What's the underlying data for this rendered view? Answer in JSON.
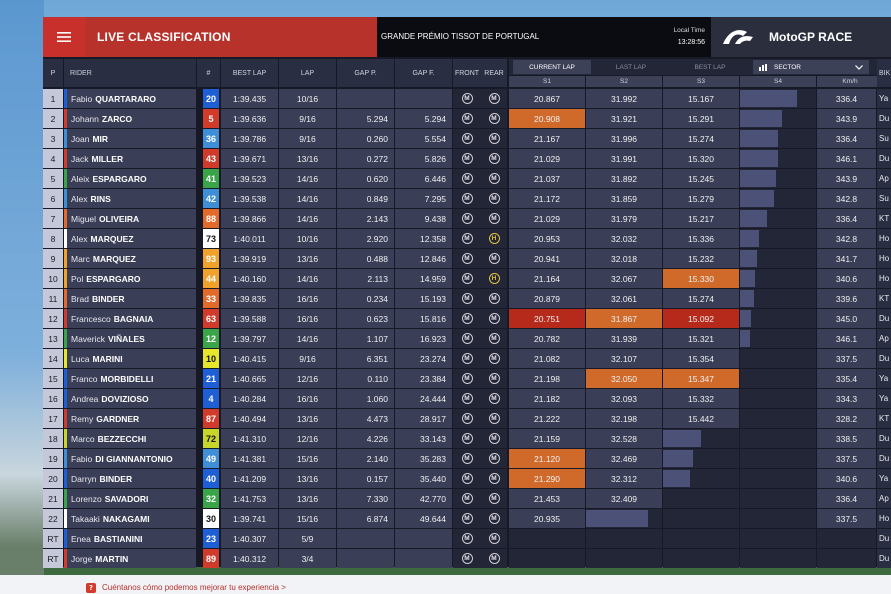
{
  "header": {
    "title": "LIVE CLASSIFICATION",
    "grand_prix": "GRANDE PRÉMIO TISSOT DE PORTUGAL",
    "local_time_label": "Local Time",
    "local_time": "13:28:56",
    "brand": "MotoGP RACE"
  },
  "columns": {
    "pos": "P",
    "rider": "RIDER",
    "num": "#",
    "best_lap": "BEST LAP",
    "lap": "LAP",
    "gap_p": "GAP P.",
    "gap_f": "GAP F.",
    "front": "FRONT",
    "rear": "REAR",
    "bike": "BIK",
    "s1": "S1",
    "s2": "S2",
    "s3": "S3",
    "s4": "S4",
    "speed": "Km/h"
  },
  "lap_modes": [
    "CURRENT LAP",
    "LAST LAP",
    "BEST LAP"
  ],
  "sector_select": "SECTOR",
  "colors": {
    "red": "#b8322c",
    "orange": "#cf6a2a",
    "deepred": "#b62a1c"
  },
  "riders": [
    {
      "pos": "1",
      "first": "Fabio",
      "last": "QUARTARARO",
      "num": "20",
      "num_bg": "#1f5fd6",
      "stripe": "#1f5fd6",
      "best": "1:39.435",
      "lap": "10/16",
      "gap_p": "",
      "gap_f": "",
      "front": "M",
      "rear": "M",
      "s1": "20.867",
      "s2": "31.992",
      "s3": "15.167",
      "s4": 0.75,
      "speed": "336.4",
      "bike": "Ya",
      "hl": []
    },
    {
      "pos": "2",
      "first": "Johann",
      "last": "ZARCO",
      "num": "5",
      "num_bg": "#d13b2b",
      "stripe": "#d13b2b",
      "best": "1:39.636",
      "lap": "9/16",
      "gap_p": "5.294",
      "gap_f": "5.294",
      "front": "M",
      "rear": "M",
      "s1": "20.908",
      "s2": "31.921",
      "s3": "15.291",
      "s4": 0.55,
      "speed": "343.9",
      "bike": "Du",
      "hl": [
        "s1o"
      ]
    },
    {
      "pos": "3",
      "first": "Joan",
      "last": "MIR",
      "num": "36",
      "num_bg": "#3e8fd6",
      "stripe": "#3e8fd6",
      "best": "1:39.786",
      "lap": "9/16",
      "gap_p": "0.260",
      "gap_f": "5.554",
      "front": "M",
      "rear": "M",
      "s1": "21.167",
      "s2": "31.996",
      "s3": "15.274",
      "s4": 0.5,
      "speed": "336.4",
      "bike": "Su",
      "hl": []
    },
    {
      "pos": "4",
      "first": "Jack",
      "last": "MILLER",
      "num": "43",
      "num_bg": "#d13b2b",
      "stripe": "#d13b2b",
      "best": "1:39.671",
      "lap": "13/16",
      "gap_p": "0.272",
      "gap_f": "5.826",
      "front": "M",
      "rear": "M",
      "s1": "21.029",
      "s2": "31.991",
      "s3": "15.320",
      "s4": 0.5,
      "speed": "346.1",
      "bike": "Du",
      "hl": []
    },
    {
      "pos": "5",
      "first": "Aleix",
      "last": "ESPARGARO",
      "num": "41",
      "num_bg": "#3aa548",
      "stripe": "#3aa548",
      "best": "1:39.523",
      "lap": "14/16",
      "gap_p": "0.620",
      "gap_f": "6.446",
      "front": "M",
      "rear": "M",
      "s1": "21.037",
      "s2": "31.892",
      "s3": "15.245",
      "s4": 0.47,
      "speed": "343.9",
      "bike": "Ap",
      "hl": []
    },
    {
      "pos": "6",
      "first": "Alex",
      "last": "RINS",
      "num": "42",
      "num_bg": "#3e8fd6",
      "stripe": "#3e8fd6",
      "best": "1:39.538",
      "lap": "14/16",
      "gap_p": "0.849",
      "gap_f": "7.295",
      "front": "M",
      "rear": "M",
      "s1": "21.172",
      "s2": "31.859",
      "s3": "15.279",
      "s4": 0.45,
      "speed": "342.8",
      "bike": "Su",
      "hl": []
    },
    {
      "pos": "7",
      "first": "Miguel",
      "last": "OLIVEIRA",
      "num": "88",
      "num_bg": "#e26b2c",
      "stripe": "#e26b2c",
      "best": "1:39.866",
      "lap": "14/16",
      "gap_p": "2.143",
      "gap_f": "9.438",
      "front": "M",
      "rear": "M",
      "s1": "21.029",
      "s2": "31.979",
      "s3": "15.217",
      "s4": 0.35,
      "speed": "336.4",
      "bike": "KT",
      "hl": []
    },
    {
      "pos": "8",
      "first": "Alex",
      "last": "MARQUEZ",
      "num": "73",
      "num_bg": "#ffffff",
      "stripe": "#ffffff",
      "best": "1:40.011",
      "lap": "10/16",
      "gap_p": "2.920",
      "gap_f": "12.358",
      "front": "M",
      "rear": "H",
      "s1": "20.953",
      "s2": "32.032",
      "s3": "15.336",
      "s4": 0.25,
      "speed": "342.8",
      "bike": "Ho",
      "hl": []
    },
    {
      "pos": "9",
      "first": "Marc",
      "last": "MARQUEZ",
      "num": "93",
      "num_bg": "#f0a22a",
      "stripe": "#f0a22a",
      "best": "1:39.919",
      "lap": "13/16",
      "gap_p": "0.488",
      "gap_f": "12.846",
      "front": "M",
      "rear": "M",
      "s1": "20.941",
      "s2": "32.018",
      "s3": "15.232",
      "s4": 0.22,
      "speed": "341.7",
      "bike": "Ho",
      "hl": []
    },
    {
      "pos": "10",
      "first": "Pol",
      "last": "ESPARGARO",
      "num": "44",
      "num_bg": "#f0a22a",
      "stripe": "#f0a22a",
      "best": "1:40.160",
      "lap": "14/16",
      "gap_p": "2.113",
      "gap_f": "14.959",
      "front": "M",
      "rear": "H",
      "s1": "21.164",
      "s2": "32.067",
      "s3": "15.330",
      "s4": 0.2,
      "speed": "340.6",
      "bike": "Ho",
      "hl": [
        "s3o"
      ]
    },
    {
      "pos": "11",
      "first": "Brad",
      "last": "BINDER",
      "num": "33",
      "num_bg": "#e26b2c",
      "stripe": "#e26b2c",
      "best": "1:39.835",
      "lap": "16/16",
      "gap_p": "0.234",
      "gap_f": "15.193",
      "front": "M",
      "rear": "M",
      "s1": "20.879",
      "s2": "32.061",
      "s3": "15.274",
      "s4": 0.18,
      "speed": "339.6",
      "bike": "KT",
      "hl": []
    },
    {
      "pos": "12",
      "first": "Francesco",
      "last": "BAGNAIA",
      "num": "63",
      "num_bg": "#d13b2b",
      "stripe": "#d13b2b",
      "best": "1:39.588",
      "lap": "16/16",
      "gap_p": "0.623",
      "gap_f": "15.816",
      "front": "M",
      "rear": "M",
      "s1": "20.751",
      "s2": "31.867",
      "s3": "15.092",
      "s4": 0.15,
      "speed": "345.0",
      "bike": "Du",
      "hl": [
        "s1r",
        "s2o",
        "s3r"
      ]
    },
    {
      "pos": "13",
      "first": "Maverick",
      "last": "VIÑALES",
      "num": "12",
      "num_bg": "#3aa548",
      "stripe": "#3aa548",
      "best": "1:39.797",
      "lap": "14/16",
      "gap_p": "1.107",
      "gap_f": "16.923",
      "front": "M",
      "rear": "M",
      "s1": "20.782",
      "s2": "31.939",
      "s3": "15.321",
      "s4": 0.13,
      "speed": "346.1",
      "bike": "Ap",
      "hl": []
    },
    {
      "pos": "14",
      "first": "Luca",
      "last": "MARINI",
      "num": "10",
      "num_bg": "#e6e62a",
      "stripe": "#e6e62a",
      "best": "1:40.415",
      "lap": "9/16",
      "gap_p": "6.351",
      "gap_f": "23.274",
      "front": "M",
      "rear": "M",
      "s1": "21.082",
      "s2": "32.107",
      "s3": "15.354",
      "s4": 0.0,
      "speed": "337.5",
      "bike": "Du",
      "hl": []
    },
    {
      "pos": "15",
      "first": "Franco",
      "last": "MORBIDELLI",
      "num": "21",
      "num_bg": "#1f5fd6",
      "stripe": "#1f5fd6",
      "best": "1:40.665",
      "lap": "12/16",
      "gap_p": "0.110",
      "gap_f": "23.384",
      "front": "M",
      "rear": "M",
      "s1": "21.198",
      "s2": "32.050",
      "s3": "15.347",
      "s4": 0.0,
      "speed": "335.4",
      "bike": "Ya",
      "hl": [
        "s2o",
        "s3o"
      ]
    },
    {
      "pos": "16",
      "first": "Andrea",
      "last": "DOVIZIOSO",
      "num": "4",
      "num_bg": "#1f5fd6",
      "stripe": "#1f5fd6",
      "best": "1:40.284",
      "lap": "16/16",
      "gap_p": "1.060",
      "gap_f": "24.444",
      "front": "M",
      "rear": "M",
      "s1": "21.182",
      "s2": "32.093",
      "s3": "15.332",
      "s4": 0.0,
      "speed": "334.3",
      "bike": "Ya",
      "hl": []
    },
    {
      "pos": "17",
      "first": "Remy",
      "last": "GARDNER",
      "num": "87",
      "num_bg": "#d13b2b",
      "stripe": "#d13b2b",
      "best": "1:40.494",
      "lap": "13/16",
      "gap_p": "4.473",
      "gap_f": "28.917",
      "front": "M",
      "rear": "M",
      "s1": "21.222",
      "s2": "32.198",
      "s3": "15.442",
      "s4": 0.0,
      "speed": "328.2",
      "bike": "KT",
      "hl": []
    },
    {
      "pos": "18",
      "first": "Marco",
      "last": "BEZZECCHI",
      "num": "72",
      "num_bg": "#c8d62a",
      "stripe": "#c8d62a",
      "best": "1:41.310",
      "lap": "12/16",
      "gap_p": "4.226",
      "gap_f": "33.143",
      "front": "M",
      "rear": "M",
      "s1": "21.159",
      "s2": "32.528",
      "s3": "",
      "s4": 0.0,
      "speed": "338.5",
      "bike": "Du",
      "hl": []
    },
    {
      "pos": "19",
      "first": "Fabio",
      "last": "DI GIANNANTONIO",
      "num": "49",
      "num_bg": "#3e8fd6",
      "stripe": "#3e8fd6",
      "best": "1:41.381",
      "lap": "15/16",
      "gap_p": "2.140",
      "gap_f": "35.283",
      "front": "M",
      "rear": "M",
      "s1": "21.120",
      "s2": "32.469",
      "s3": "",
      "s4": 0.0,
      "speed": "337.5",
      "bike": "Du",
      "hl": [
        "s1o"
      ]
    },
    {
      "pos": "20",
      "first": "Darryn",
      "last": "BINDER",
      "num": "40",
      "num_bg": "#1f5fd6",
      "stripe": "#1f5fd6",
      "best": "1:41.209",
      "lap": "13/16",
      "gap_p": "0.157",
      "gap_f": "35.440",
      "front": "M",
      "rear": "M",
      "s1": "21.290",
      "s2": "32.312",
      "s3": "",
      "s4": 0.0,
      "speed": "340.6",
      "bike": "Ya",
      "hl": [
        "s1o"
      ]
    },
    {
      "pos": "21",
      "first": "Lorenzo",
      "last": "SAVADORI",
      "num": "32",
      "num_bg": "#3aa548",
      "stripe": "#3aa548",
      "best": "1:41.753",
      "lap": "13/16",
      "gap_p": "7.330",
      "gap_f": "42.770",
      "front": "M",
      "rear": "M",
      "s1": "21.453",
      "s2": "32.409",
      "s3": "",
      "s4": 0.0,
      "speed": "336.4",
      "bike": "Ap",
      "hl": []
    },
    {
      "pos": "22",
      "first": "Takaaki",
      "last": "NAKAGAMI",
      "num": "30",
      "num_bg": "#ffffff",
      "stripe": "#ffffff",
      "best": "1:39.741",
      "lap": "15/16",
      "gap_p": "6.874",
      "gap_f": "49.644",
      "front": "M",
      "rear": "M",
      "s1": "20.935",
      "s2": "",
      "s3": "",
      "s4": 0.0,
      "speed": "337.5",
      "bike": "Ho",
      "hl": []
    },
    {
      "pos": "RT",
      "first": "Enea",
      "last": "BASTIANINI",
      "num": "23",
      "num_bg": "#1f5fd6",
      "stripe": "#1f5fd6",
      "best": "1:40.307",
      "lap": "5/9",
      "gap_p": "",
      "gap_f": "",
      "front": "M",
      "rear": "M",
      "s1": "",
      "s2": "",
      "s3": "",
      "s4": 0.0,
      "speed": "",
      "bike": "Du",
      "hl": []
    },
    {
      "pos": "RT",
      "first": "Jorge",
      "last": "MARTIN",
      "num": "89",
      "num_bg": "#d13b2b",
      "stripe": "#d13b2b",
      "best": "1:40.312",
      "lap": "3/4",
      "gap_p": "",
      "gap_f": "",
      "front": "M",
      "rear": "M",
      "s1": "",
      "s2": "",
      "s3": "",
      "s4": 0.0,
      "speed": "",
      "bike": "Du",
      "hl": []
    }
  ],
  "footer": {
    "icon": "?",
    "text": "Cuéntanos cómo podemos mejorar tu experiencia >"
  }
}
